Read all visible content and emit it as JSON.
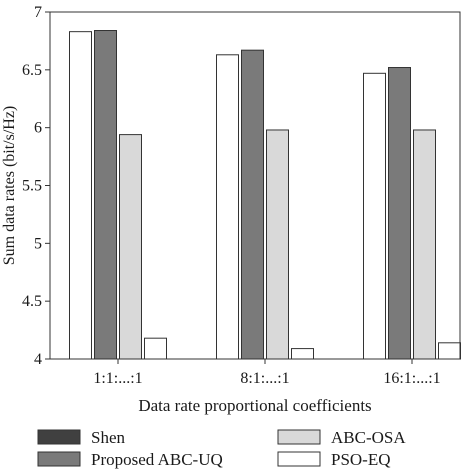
{
  "chart_data": {
    "type": "bar",
    "title": "",
    "xlabel": "Data rate proportional coefficients",
    "ylabel": "Sum data rates (bit/s/Hz)",
    "ylim": [
      4,
      7
    ],
    "yticks": [
      "4",
      "4.5",
      "5",
      "5.5",
      "6",
      "6.5",
      "7"
    ],
    "categories": [
      "1:1:...:1",
      "8:1:...:1",
      "16:1:...:1"
    ],
    "series": [
      {
        "name": "Shen",
        "color": "#ffffff",
        "values": [
          6.83,
          6.63,
          6.47
        ]
      },
      {
        "name": "Proposed ABC-UQ",
        "color": "#7a7a7a",
        "values": [
          6.84,
          6.67,
          6.52
        ]
      },
      {
        "name": "ABC-OSA",
        "color": "#d9d9d9",
        "values": [
          5.94,
          5.98,
          5.98
        ]
      },
      {
        "name": "PSO-EQ",
        "color": "#ffffff",
        "values": [
          4.18,
          4.09,
          4.14
        ]
      }
    ],
    "legend": {
      "placement": "bottom",
      "items": [
        {
          "label": "Shen",
          "color": "#404040"
        },
        {
          "label": "Proposed ABC-UQ",
          "color": "#7a7a7a"
        },
        {
          "label": "ABC-OSA",
          "color": "#d9d9d9"
        },
        {
          "label": "PSO-EQ",
          "color": "#ffffff"
        }
      ]
    },
    "grid": false
  }
}
